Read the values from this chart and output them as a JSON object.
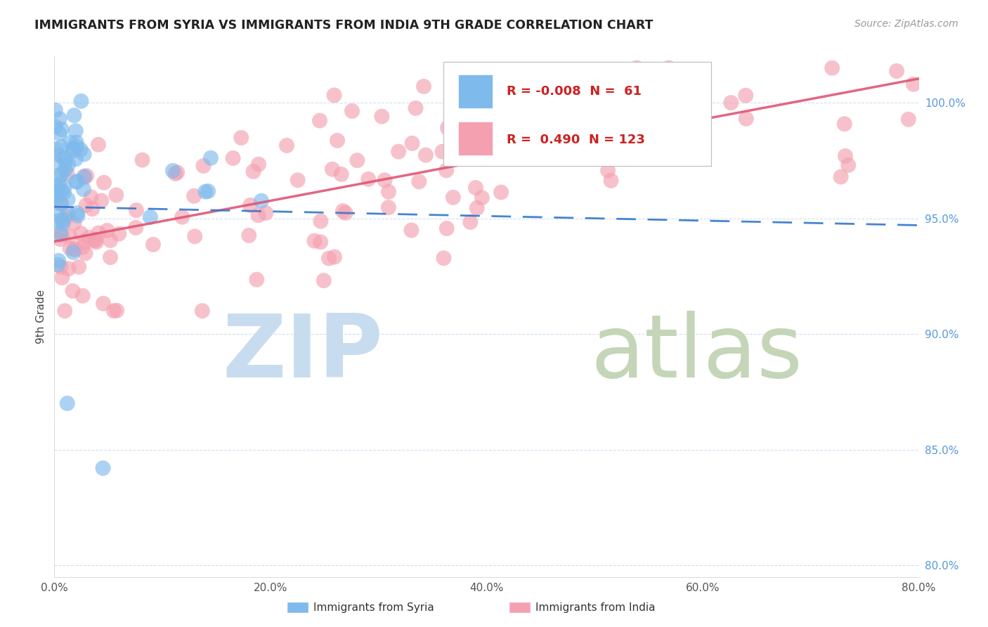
{
  "title": "IMMIGRANTS FROM SYRIA VS IMMIGRANTS FROM INDIA 9TH GRADE CORRELATION CHART",
  "source": "Source: ZipAtlas.com",
  "ylabel": "9th Grade",
  "xlim": [
    0.0,
    80.0
  ],
  "ylim": [
    79.5,
    102.0
  ],
  "syria_R": -0.008,
  "syria_N": 61,
  "india_R": 0.49,
  "india_N": 123,
  "syria_color": "#7FBAEC",
  "india_color": "#F4A0B0",
  "syria_trend_color": "#3377CC",
  "india_trend_color": "#E05575",
  "background_color": "#FFFFFF",
  "grid_color": "#CCDDEE",
  "ytick_color": "#5599DD",
  "xtick_color": "#555555",
  "title_color": "#222222",
  "source_color": "#999999",
  "ylabel_color": "#444444",
  "watermark_zip_color": "#C8DCF0",
  "watermark_atlas_color": "#C5D5B8",
  "legend_text_color": "#CC2222",
  "legend_label_color": "#333333",
  "syria_trend_intercept": 95.5,
  "syria_trend_slope": -0.01,
  "india_trend_intercept": 94.0,
  "india_trend_slope": 0.088
}
